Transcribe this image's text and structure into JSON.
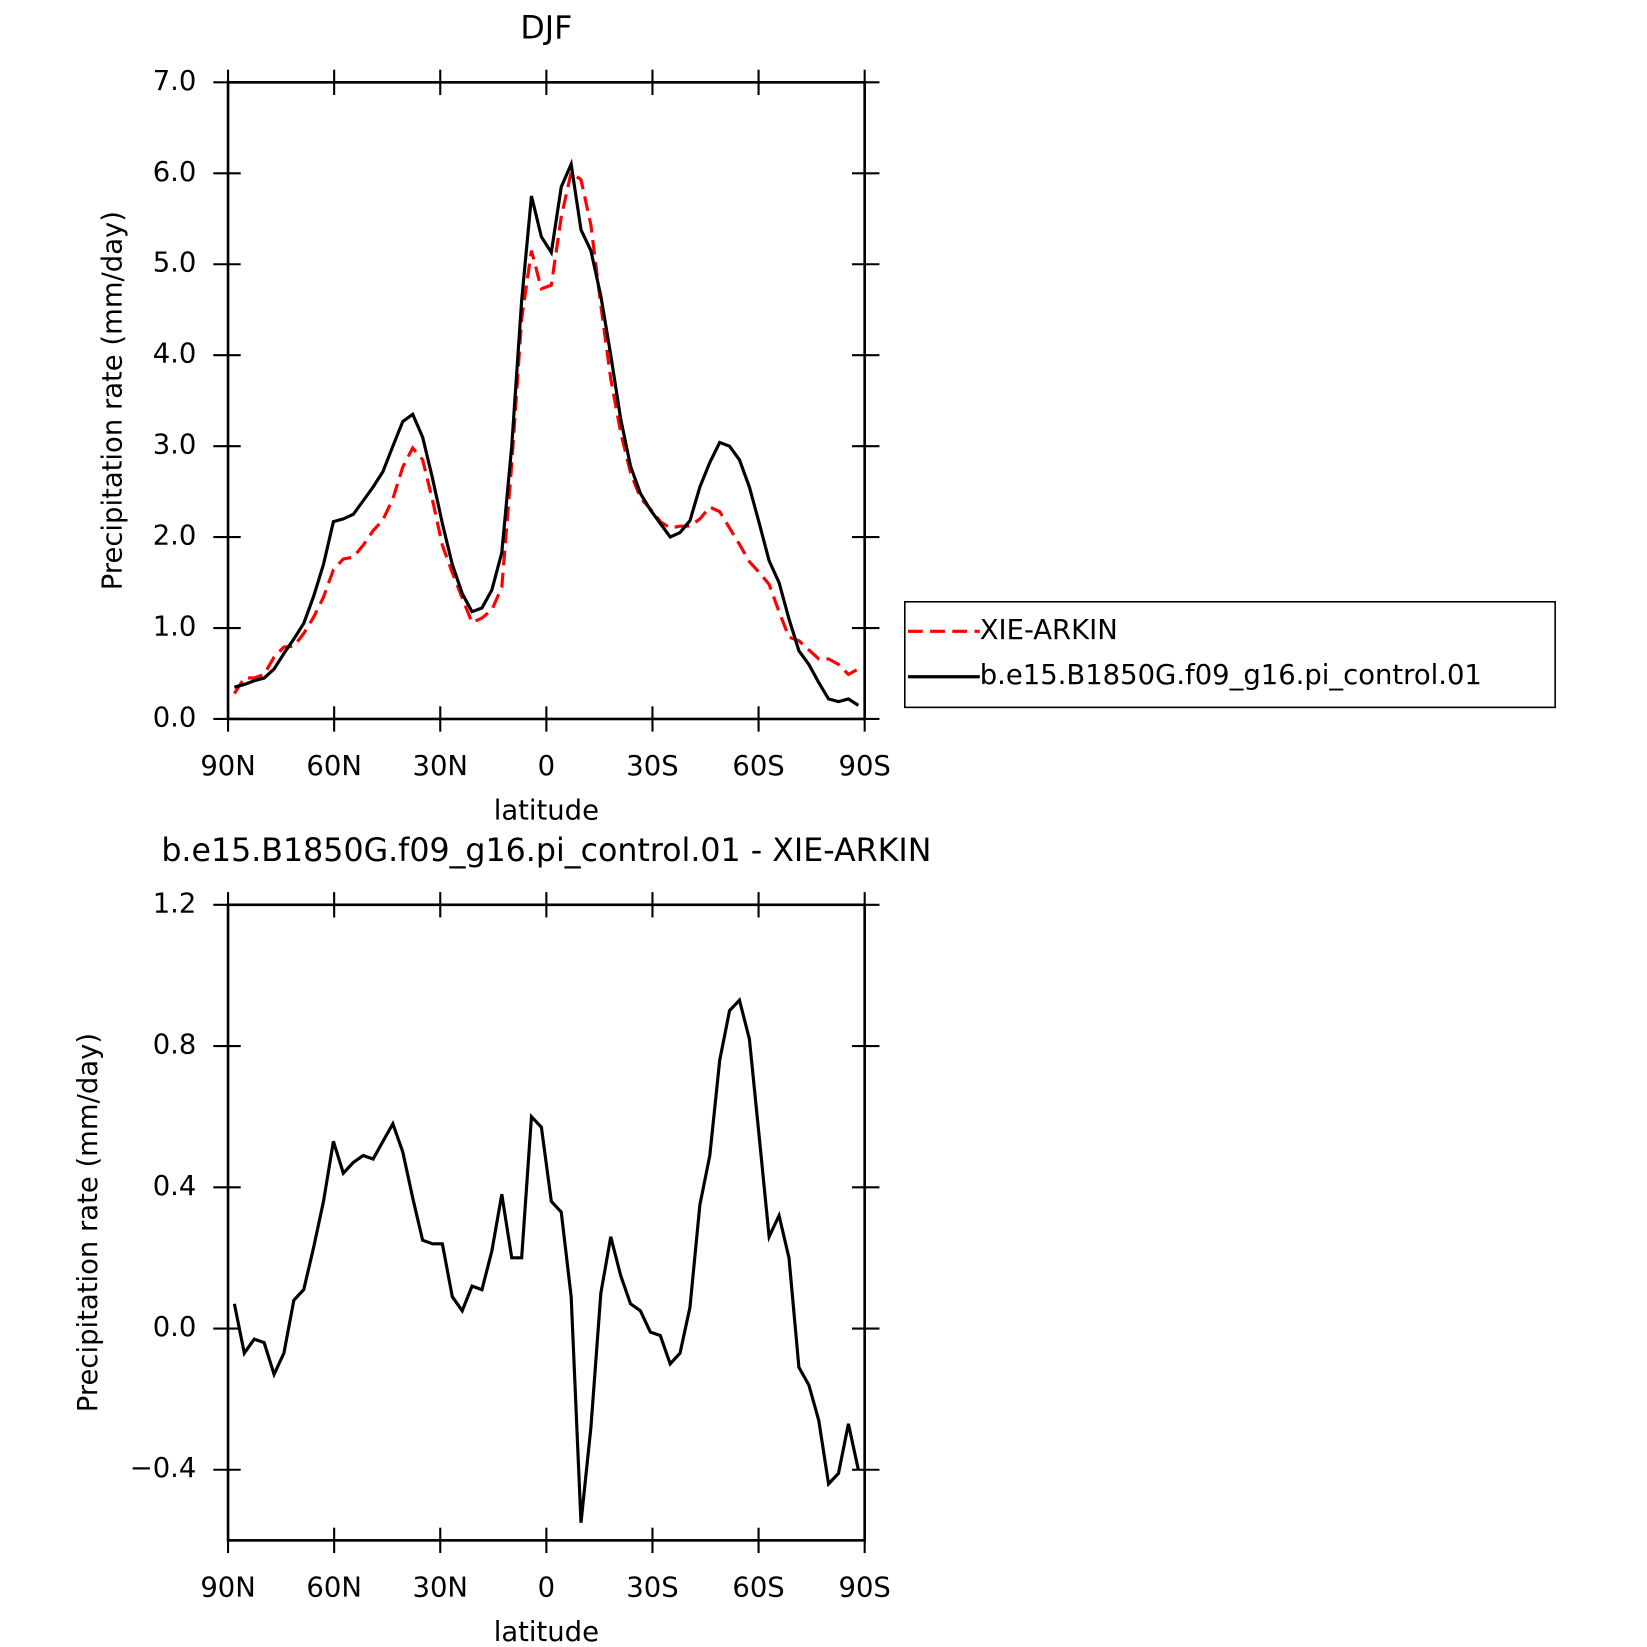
{
  "chart_data": [
    {
      "type": "line",
      "title": "DJF",
      "xlabel": "latitude",
      "ylabel": "Precipitation rate (mm/day)",
      "x": [
        88.2,
        85.4,
        82.6,
        79.8,
        77,
        74.2,
        71.4,
        68.6,
        65.8,
        63,
        60.2,
        57.4,
        54.6,
        51.8,
        49,
        46.2,
        43.4,
        40.6,
        37.8,
        35,
        32.2,
        29.4,
        26.6,
        23.8,
        21,
        18.2,
        15.4,
        12.6,
        9.8,
        7,
        4.2,
        1.4,
        -1.4,
        -4.2,
        -7,
        -9.8,
        -12.6,
        -15.4,
        -18.2,
        -21,
        -23.8,
        -26.6,
        -29.4,
        -32.2,
        -35,
        -37.8,
        -40.6,
        -43.4,
        -46.2,
        -49,
        -51.8,
        -54.6,
        -57.4,
        -60.2,
        -63,
        -65.8,
        -68.6,
        -71.4,
        -74.2,
        -77,
        -79.8,
        -82.6,
        -85.4,
        -88.2
      ],
      "series": [
        {
          "name": "XIE-ARKIN",
          "color": "#ff0000",
          "dash": true,
          "values": [
            0.28,
            0.45,
            0.45,
            0.49,
            0.68,
            0.79,
            0.8,
            0.94,
            1.12,
            1.34,
            1.64,
            1.76,
            1.78,
            1.91,
            2.07,
            2.19,
            2.42,
            2.77,
            2.98,
            2.85,
            2.41,
            1.91,
            1.61,
            1.33,
            1.06,
            1.11,
            1.2,
            1.45,
            2.8,
            4.4,
            5.15,
            4.73,
            4.77,
            5.52,
            6.01,
            5.93,
            5.43,
            4.55,
            3.74,
            3.15,
            2.71,
            2.43,
            2.31,
            2.17,
            2.1,
            2.12,
            2.12,
            2.2,
            2.33,
            2.28,
            2.1,
            1.92,
            1.73,
            1.61,
            1.48,
            1.18,
            0.9,
            0.86,
            0.76,
            0.66,
            0.66,
            0.6,
            0.49,
            0.55
          ]
        },
        {
          "name": "b.e15.B1850G.f09_g16.pi_control.01",
          "color": "#000000",
          "dash": false,
          "values": [
            0.35,
            0.38,
            0.42,
            0.45,
            0.55,
            0.72,
            0.88,
            1.05,
            1.35,
            1.7,
            2.17,
            2.2,
            2.25,
            2.4,
            2.55,
            2.72,
            3.0,
            3.27,
            3.35,
            3.1,
            2.65,
            2.15,
            1.7,
            1.38,
            1.18,
            1.22,
            1.42,
            1.83,
            3.0,
            4.6,
            5.75,
            5.3,
            5.13,
            5.85,
            6.1,
            5.38,
            5.15,
            4.65,
            4.0,
            3.3,
            2.78,
            2.48,
            2.3,
            2.15,
            2.0,
            2.05,
            2.18,
            2.55,
            2.82,
            3.04,
            3.0,
            2.85,
            2.55,
            2.15,
            1.74,
            1.5,
            1.1,
            0.75,
            0.6,
            0.4,
            0.22,
            0.19,
            0.22,
            0.15
          ]
        }
      ],
      "xlim": [
        90,
        -90
      ],
      "xticks": [
        {
          "value": 90,
          "label": "90N"
        },
        {
          "value": 60,
          "label": "60N"
        },
        {
          "value": 30,
          "label": "30N"
        },
        0,
        {
          "value": -30,
          "label": "30S"
        },
        {
          "value": -60,
          "label": "60S"
        },
        {
          "value": -90,
          "label": "90S"
        }
      ],
      "ylim": [
        0,
        7
      ],
      "yticks": [
        {
          "value": 0,
          "label": "0.0"
        },
        {
          "value": 1,
          "label": "1.0"
        },
        {
          "value": 2,
          "label": "2.0"
        },
        {
          "value": 3,
          "label": "3.0"
        },
        {
          "value": 4,
          "label": "4.0"
        },
        {
          "value": 5,
          "label": "5.0"
        },
        {
          "value": 6,
          "label": "6.0"
        },
        {
          "value": 7,
          "label": "7.0"
        }
      ],
      "legend": "right"
    },
    {
      "type": "line",
      "title": "b.e15.B1850G.f09_g16.pi_control.01 - XIE-ARKIN",
      "xlabel": "latitude",
      "ylabel": "Precipitation rate (mm/day)",
      "x": [
        88.2,
        85.4,
        82.6,
        79.8,
        77,
        74.2,
        71.4,
        68.6,
        65.8,
        63,
        60.2,
        57.4,
        54.6,
        51.8,
        49,
        46.2,
        43.4,
        40.6,
        37.8,
        35,
        32.2,
        29.4,
        26.6,
        23.8,
        21,
        18.2,
        15.4,
        12.6,
        9.8,
        7,
        4.2,
        1.4,
        -1.4,
        -4.2,
        -7,
        -9.8,
        -12.6,
        -15.4,
        -18.2,
        -21,
        -23.8,
        -26.6,
        -29.4,
        -32.2,
        -35,
        -37.8,
        -40.6,
        -43.4,
        -46.2,
        -49,
        -51.8,
        -54.6,
        -57.4,
        -60.2,
        -63,
        -65.8,
        -68.6,
        -71.4,
        -74.2,
        -77,
        -79.8,
        -82.6,
        -85.4,
        -88.2
      ],
      "color": "#000000",
      "values": [
        0.07,
        -0.07,
        -0.03,
        -0.04,
        -0.13,
        -0.07,
        0.08,
        0.11,
        0.23,
        0.36,
        0.53,
        0.44,
        0.47,
        0.49,
        0.48,
        0.53,
        0.58,
        0.5,
        0.37,
        0.25,
        0.24,
        0.24,
        0.09,
        0.05,
        0.12,
        0.11,
        0.22,
        0.38,
        0.2,
        0.2,
        0.6,
        0.57,
        0.36,
        0.33,
        0.09,
        -0.55,
        -0.28,
        0.1,
        0.26,
        0.15,
        0.07,
        0.05,
        -0.01,
        -0.02,
        -0.1,
        -0.07,
        0.06,
        0.35,
        0.49,
        0.76,
        0.9,
        0.93,
        0.82,
        0.54,
        0.26,
        0.32,
        0.2,
        -0.11,
        -0.16,
        -0.26,
        -0.44,
        -0.41,
        -0.27,
        -0.4
      ],
      "xlim": [
        90,
        -90
      ],
      "xticks": [
        {
          "value": 90,
          "label": "90N"
        },
        {
          "value": 60,
          "label": "60N"
        },
        {
          "value": 30,
          "label": "30N"
        },
        0,
        {
          "value": -30,
          "label": "30S"
        },
        {
          "value": -60,
          "label": "60S"
        },
        {
          "value": -90,
          "label": "90S"
        }
      ],
      "ylim": [
        -0.6,
        1.2
      ],
      "yticks": [
        {
          "value": -0.4,
          "label": "−0.4"
        },
        {
          "value": 0,
          "label": "0.0"
        },
        0.4,
        0.8,
        1.2
      ]
    }
  ]
}
